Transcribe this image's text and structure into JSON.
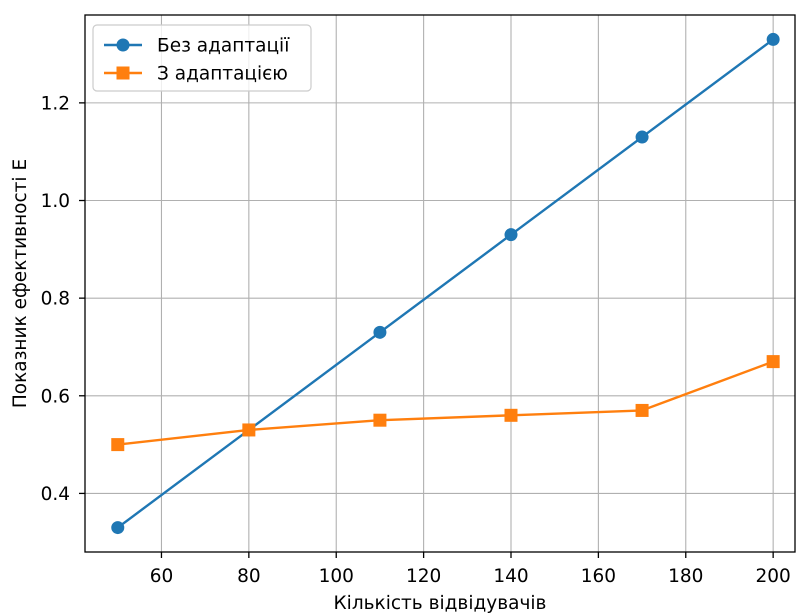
{
  "chart_data": {
    "type": "line",
    "x": [
      50,
      80,
      110,
      140,
      170,
      200
    ],
    "series": [
      {
        "name": "Без адаптації",
        "values": [
          0.33,
          0.53,
          0.73,
          0.93,
          1.13,
          1.33
        ],
        "color": "#1f77b4",
        "marker": "circle"
      },
      {
        "name": "З адаптацією",
        "values": [
          0.5,
          0.53,
          0.55,
          0.56,
          0.57,
          0.67
        ],
        "color": "#ff7f0e",
        "marker": "square"
      }
    ],
    "xlabel": "Кількість відвідувачів",
    "ylabel": "Показник ефективності E",
    "xlim": [
      42.5,
      205
    ],
    "ylim": [
      0.28,
      1.38
    ],
    "x_ticks": [
      "60",
      "80",
      "100",
      "120",
      "140",
      "160",
      "180",
      "200"
    ],
    "y_ticks": [
      "0.4",
      "0.6",
      "0.8",
      "1.0",
      "1.2"
    ],
    "grid": true,
    "legend": "top-left"
  }
}
